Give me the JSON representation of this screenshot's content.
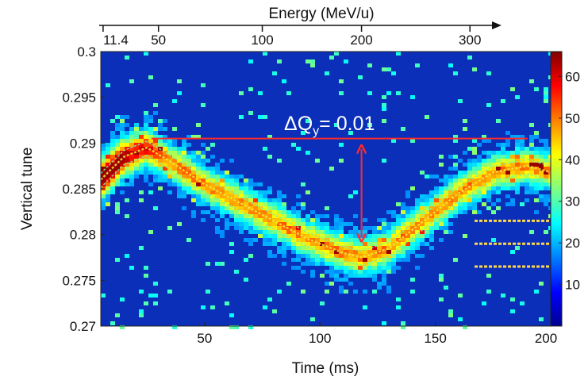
{
  "chart_data": {
    "type": "heatmap",
    "title": "",
    "xlabel": "Time (ms)",
    "ylabel": "Vertical tune",
    "top_axis_label": "Energy (MeV/u)",
    "xlim": [
      5,
      200
    ],
    "ylim": [
      0.27,
      0.3
    ],
    "x_ticks": [
      50,
      100,
      150,
      200
    ],
    "x_tick_labels": [
      "50",
      "100",
      "150",
      "200"
    ],
    "y_ticks": [
      0.27,
      0.275,
      0.28,
      0.285,
      0.29,
      0.295,
      0.3
    ],
    "y_tick_labels": [
      "0.27",
      "0.275",
      "0.28",
      "0.285",
      "0.29",
      "0.295",
      "0.3"
    ],
    "top_ticks": [
      {
        "time": 6,
        "label": "11.4"
      },
      {
        "time": 30,
        "label": "50"
      },
      {
        "time": 75,
        "label": "100"
      },
      {
        "time": 118,
        "label": "200"
      },
      {
        "time": 165,
        "label": "300"
      }
    ],
    "colorbar": {
      "range": [
        0,
        66
      ],
      "ticks": [
        10,
        20,
        30,
        40,
        50,
        60
      ],
      "tick_labels": [
        "10",
        "20",
        "30",
        "40",
        "50",
        "60"
      ],
      "colormap": "jet"
    },
    "tune_curve": {
      "time": [
        5,
        15,
        25,
        35,
        50,
        65,
        80,
        95,
        110,
        118,
        130,
        145,
        160,
        175,
        190,
        200
      ],
      "tune": [
        0.286,
        0.2885,
        0.2895,
        0.288,
        0.2855,
        0.2835,
        0.2815,
        0.2795,
        0.278,
        0.2775,
        0.2785,
        0.2815,
        0.2845,
        0.2868,
        0.2875,
        0.2868
      ]
    },
    "horizontal_lines": [
      {
        "time_start": 167,
        "time_end": 200,
        "tune": 0.2815
      },
      {
        "time_start": 167,
        "time_end": 200,
        "tune": 0.279
      },
      {
        "time_start": 167,
        "time_end": 200,
        "tune": 0.2765
      }
    ],
    "annotation": {
      "prefix": "ΔQ",
      "subscript": "y",
      "suffix": "= 0.01",
      "reference_line": {
        "time_start": 27,
        "time_end": 190,
        "tune": 0.2905
      },
      "arrow": {
        "time": 118,
        "tune_start": 0.2895,
        "tune_end": 0.2795
      }
    }
  }
}
